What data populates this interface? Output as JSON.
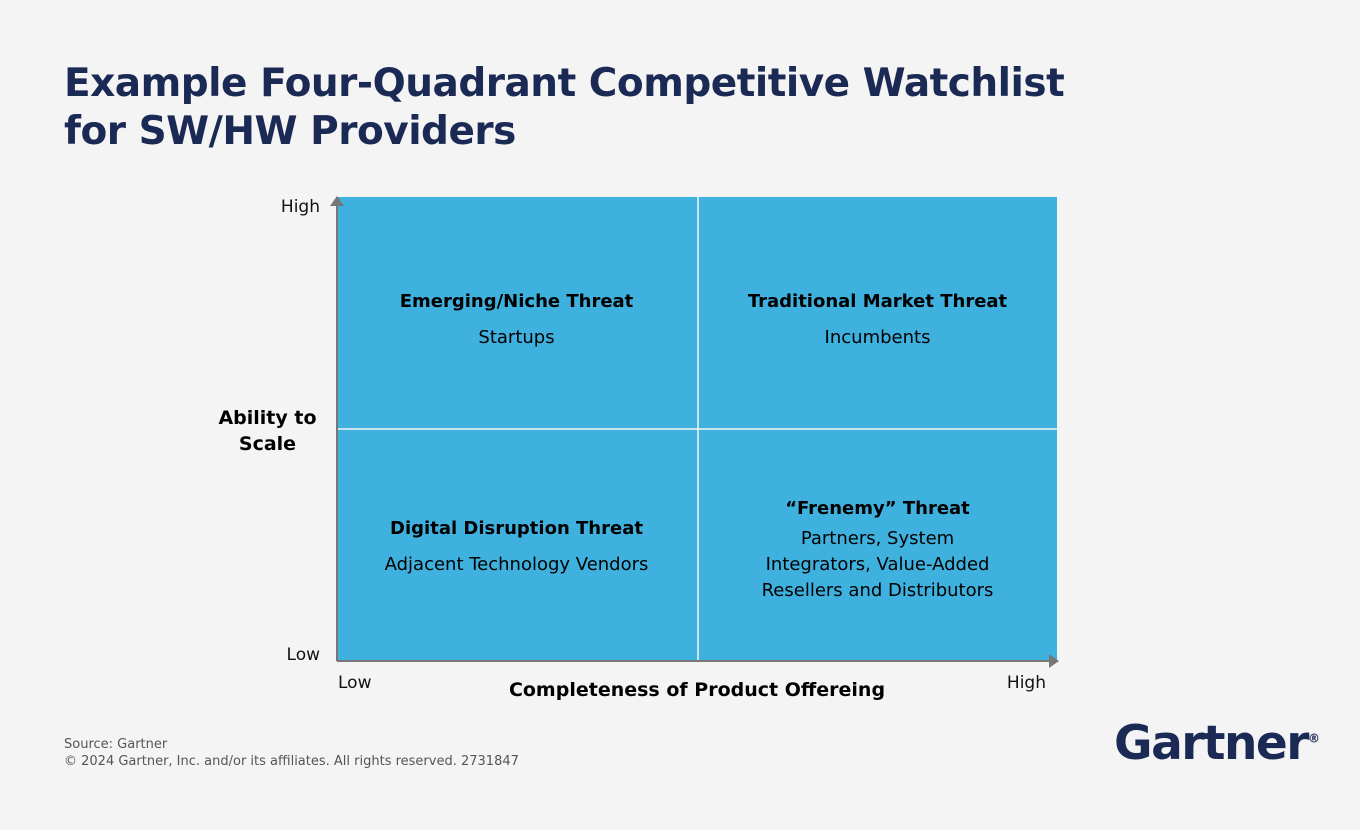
{
  "header": {
    "title_lines": [
      "Example Four-Quadrant Competitive Watchlist",
      "for SW/HW Providers"
    ]
  },
  "matrix": {
    "y_axis": {
      "title": "Ability to Scale",
      "high": "High",
      "low": "Low"
    },
    "x_axis": {
      "title": "Completeness of Product Offereing",
      "low": "Low",
      "high": "High"
    },
    "quadrants": [
      {
        "title": "Emerging/Niche Threat",
        "lines": [
          "Startups"
        ]
      },
      {
        "title": "Traditional Market Threat",
        "lines": [
          "Incumbents"
        ]
      },
      {
        "title": "Digital Disruption Threat",
        "lines": [
          "Adjacent Technology Vendors"
        ]
      },
      {
        "title": "“Frenemy” Threat",
        "lines": [
          "Partners, System",
          "Integrators, Value-Added",
          "Resellers and Distributors"
        ]
      }
    ]
  },
  "footer": {
    "source": "Source: Gartner",
    "copyright": "© 2024 Gartner, Inc. and/or its affiliates. All rights reserved. 2731847",
    "logo": "Gartner",
    "logo_mark": "®"
  }
}
